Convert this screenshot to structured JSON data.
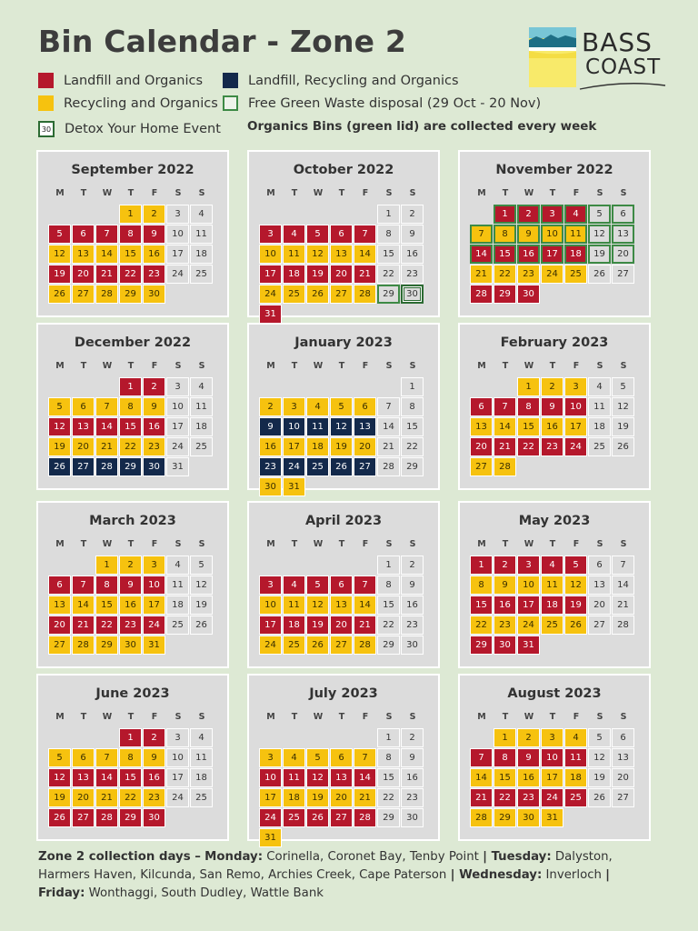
{
  "title": "Bin Calendar - Zone 2",
  "logo": {
    "line1": "BASS",
    "line2": "COAST"
  },
  "legend": {
    "landfill_organics": "Landfill and Organics",
    "recycling_organics": "Recycling and Organics",
    "landfill_recycling_organics": "Landfill, Recycling and Organics",
    "green_waste": "Free Green Waste disposal (29 Oct - 20 Nov)",
    "detox_num": "30",
    "detox": "Detox Your Home Event"
  },
  "note": "Organics Bins (green lid) are collected every week",
  "weekdays": [
    "M",
    "T",
    "W",
    "T",
    "F",
    "S",
    "S"
  ],
  "colors": {
    "landfill": "#b5182c",
    "recycling": "#f6c20f",
    "combined": "#13294b",
    "green_outline": "#3d8a45",
    "background": "#dde9d4"
  },
  "months": [
    {
      "name": "September 2022",
      "offset": 3,
      "days": 30,
      "rows": [
        "Y",
        "R",
        "Y",
        "R",
        "Y"
      ]
    },
    {
      "name": "October 2022",
      "offset": 5,
      "days": 31,
      "rows": [
        "W",
        "R",
        "Y",
        "R",
        "Y",
        "R"
      ],
      "green": [
        29,
        30
      ],
      "detox": [
        30
      ]
    },
    {
      "name": "November 2022",
      "offset": 1,
      "days": 30,
      "rows": [
        "R",
        "Y",
        "R",
        "Y",
        "R"
      ],
      "green": [
        1,
        2,
        3,
        4,
        5,
        6,
        7,
        8,
        9,
        10,
        11,
        12,
        13,
        14,
        15,
        16,
        17,
        18,
        19,
        20
      ]
    },
    {
      "name": "December 2022",
      "offset": 3,
      "days": 31,
      "rows": [
        "R",
        "Y",
        "R",
        "Y",
        "B"
      ]
    },
    {
      "name": "January 2023",
      "offset": 6,
      "days": 31,
      "rows": [
        "W",
        "Y",
        "B",
        "Y",
        "B",
        "Y"
      ]
    },
    {
      "name": "February 2023",
      "offset": 2,
      "days": 28,
      "rows": [
        "Y",
        "R",
        "Y",
        "R",
        "Y"
      ]
    },
    {
      "name": "March 2023",
      "offset": 2,
      "days": 31,
      "rows": [
        "Y",
        "R",
        "Y",
        "R",
        "Y"
      ]
    },
    {
      "name": "April 2023",
      "offset": 5,
      "days": 30,
      "rows": [
        "W",
        "R",
        "Y",
        "R",
        "Y"
      ]
    },
    {
      "name": "May 2023",
      "offset": 0,
      "days": 31,
      "rows": [
        "R",
        "Y",
        "R",
        "Y",
        "R"
      ]
    },
    {
      "name": "June 2023",
      "offset": 3,
      "days": 30,
      "rows": [
        "R",
        "Y",
        "R",
        "Y",
        "R"
      ]
    },
    {
      "name": "July 2023",
      "offset": 5,
      "days": 31,
      "rows": [
        "W",
        "Y",
        "R",
        "Y",
        "R",
        "Y"
      ]
    },
    {
      "name": "August 2023",
      "offset": 1,
      "days": 31,
      "rows": [
        "Y",
        "R",
        "Y",
        "R",
        "Y"
      ]
    }
  ],
  "footer": {
    "heading": "Zone 2 collection days –",
    "monday_label": "Monday:",
    "monday": " Corinella, Coronet Bay, Tenby Point ",
    "sep1": "| ",
    "tuesday_label": "Tuesday:",
    "tuesday": " Dalyston, Harmers Haven, Kilcunda, San Remo, Archies Creek, Cape Paterson ",
    "sep2": "| ",
    "wednesday_label": "Wednesday:",
    "wednesday": " Inverloch ",
    "sep3": "| ",
    "friday_label": "Friday:",
    "friday": " Wonthaggi, South Dudley, Wattle Bank"
  }
}
